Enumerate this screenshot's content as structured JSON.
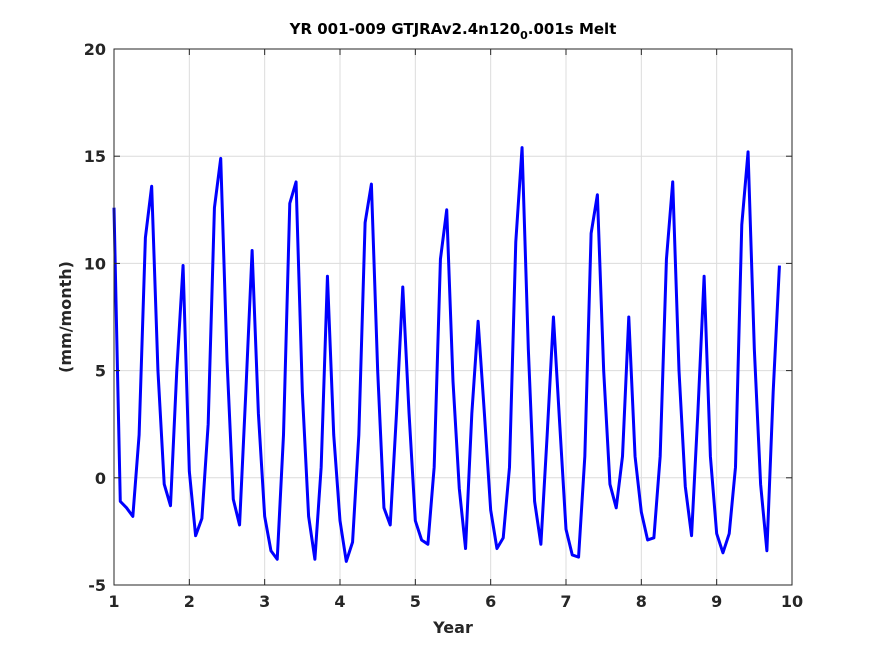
{
  "chart_data": {
    "type": "line",
    "title": {
      "main": "YR 001-009 GTJRAv2.4n120",
      "subscript": "0",
      "rest": ".001s Melt"
    },
    "xlabel": "Year",
    "ylabel": "(mm/month)",
    "xlim": [
      1,
      10
    ],
    "ylim": [
      -5,
      20
    ],
    "x_ticks": [
      "1",
      "2",
      "3",
      "4",
      "5",
      "6",
      "7",
      "8",
      "9",
      "10"
    ],
    "y_ticks": [
      "-5",
      "0",
      "5",
      "10",
      "15",
      "20"
    ],
    "grid": true,
    "color": "#0000ff",
    "series": [
      {
        "x_start": 1.0,
        "x_step": 0.0833333,
        "values": [
          12.6,
          -1.1,
          -1.4,
          -1.8,
          2.0,
          11.2,
          13.6,
          5.0,
          -0.3,
          -1.3,
          5.0,
          9.9,
          0.3,
          -2.7,
          -1.9,
          2.5,
          12.6,
          14.9,
          5.5,
          -1.0,
          -2.2,
          4.0,
          10.6,
          3.0,
          -1.8,
          -3.4,
          -3.8,
          2.0,
          12.8,
          13.8,
          4.0,
          -1.8,
          -3.8,
          0.5,
          9.4,
          2.0,
          -2.0,
          -3.9,
          -3.0,
          2.0,
          11.9,
          13.7,
          5.0,
          -1.4,
          -2.2,
          3.0,
          8.9,
          3.0,
          -2.0,
          -2.9,
          -3.1,
          0.5,
          10.2,
          12.5,
          4.5,
          -0.5,
          -3.3,
          3.0,
          7.3,
          3.0,
          -1.5,
          -3.3,
          -2.8,
          0.5,
          11.0,
          15.4,
          6.0,
          -1.1,
          -3.1,
          2.0,
          7.5,
          2.5,
          -2.4,
          -3.6,
          -3.7,
          1.0,
          11.4,
          13.2,
          5.0,
          -0.3,
          -1.4,
          1.0,
          7.5,
          1.0,
          -1.6,
          -2.9,
          -2.8,
          1.0,
          10.2,
          13.8,
          5.0,
          -0.4,
          -2.7,
          3.0,
          9.4,
          1.0,
          -2.6,
          -3.5,
          -2.6,
          0.5,
          11.8,
          15.2,
          6.0,
          -0.3,
          -3.4,
          4.0,
          9.9
        ]
      }
    ]
  }
}
